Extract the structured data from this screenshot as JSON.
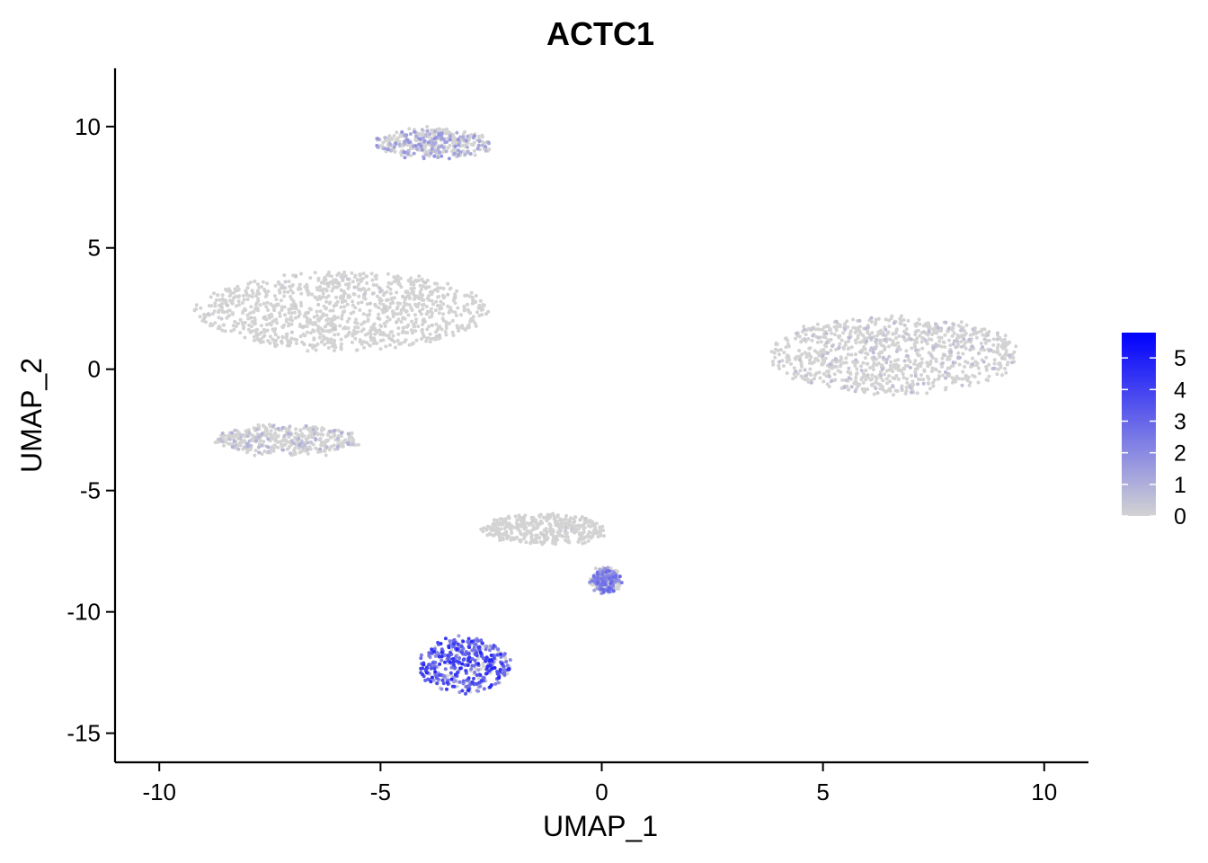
{
  "chart_data": {
    "type": "scatter",
    "title": "ACTC1",
    "xlabel": "UMAP_1",
    "ylabel": "UMAP_2",
    "xlim": [
      -11,
      11
    ],
    "ylim": [
      -16.2,
      12.4
    ],
    "x_ticks": [
      -10,
      -5,
      0,
      5,
      10
    ],
    "x_tick_labels": [
      "-10",
      "-5",
      "0",
      "5",
      "10"
    ],
    "y_ticks": [
      -15,
      -10,
      -5,
      0,
      5,
      10
    ],
    "y_tick_labels": [
      "-15",
      "-10",
      "-5",
      "0",
      "5",
      "10"
    ],
    "grid": false,
    "legend_position": "right",
    "color_low": "#d3d3d3",
    "color_high": "#0000ff",
    "legend": {
      "min": 0,
      "max": 5.8,
      "ticks": [
        0,
        1,
        2,
        3,
        4,
        5
      ],
      "tick_labels": [
        "0",
        "1",
        "2",
        "3",
        "4",
        "5"
      ]
    },
    "clusters": [
      {
        "id": "top-cluster",
        "center": [
          -3.8,
          9.3
        ],
        "spread": [
          1.3,
          0.6
        ],
        "expression": 0.9
      },
      {
        "id": "upper-left-cluster",
        "center": [
          -5.9,
          2.4
        ],
        "spread": [
          3.3,
          1.6
        ],
        "expression": 0.15
      },
      {
        "id": "right-cluster",
        "center": [
          6.6,
          0.6
        ],
        "spread": [
          2.8,
          1.6
        ],
        "expression": 0.35
      },
      {
        "id": "left-lower-cluster",
        "center": [
          -7.1,
          -2.9
        ],
        "spread": [
          1.6,
          0.6
        ],
        "expression": 0.5
      },
      {
        "id": "middle-cluster",
        "center": [
          -1.3,
          -6.6
        ],
        "spread": [
          1.4,
          0.6
        ],
        "expression": 0.1
      },
      {
        "id": "small-right-cluster",
        "center": [
          0.1,
          -8.7
        ],
        "spread": [
          0.3,
          0.5
        ],
        "expression": 1.5
      },
      {
        "id": "bottom-cluster",
        "center": [
          -3.1,
          -12.2
        ],
        "spread": [
          1.0,
          1.1
        ],
        "expression": 2.4
      }
    ]
  }
}
